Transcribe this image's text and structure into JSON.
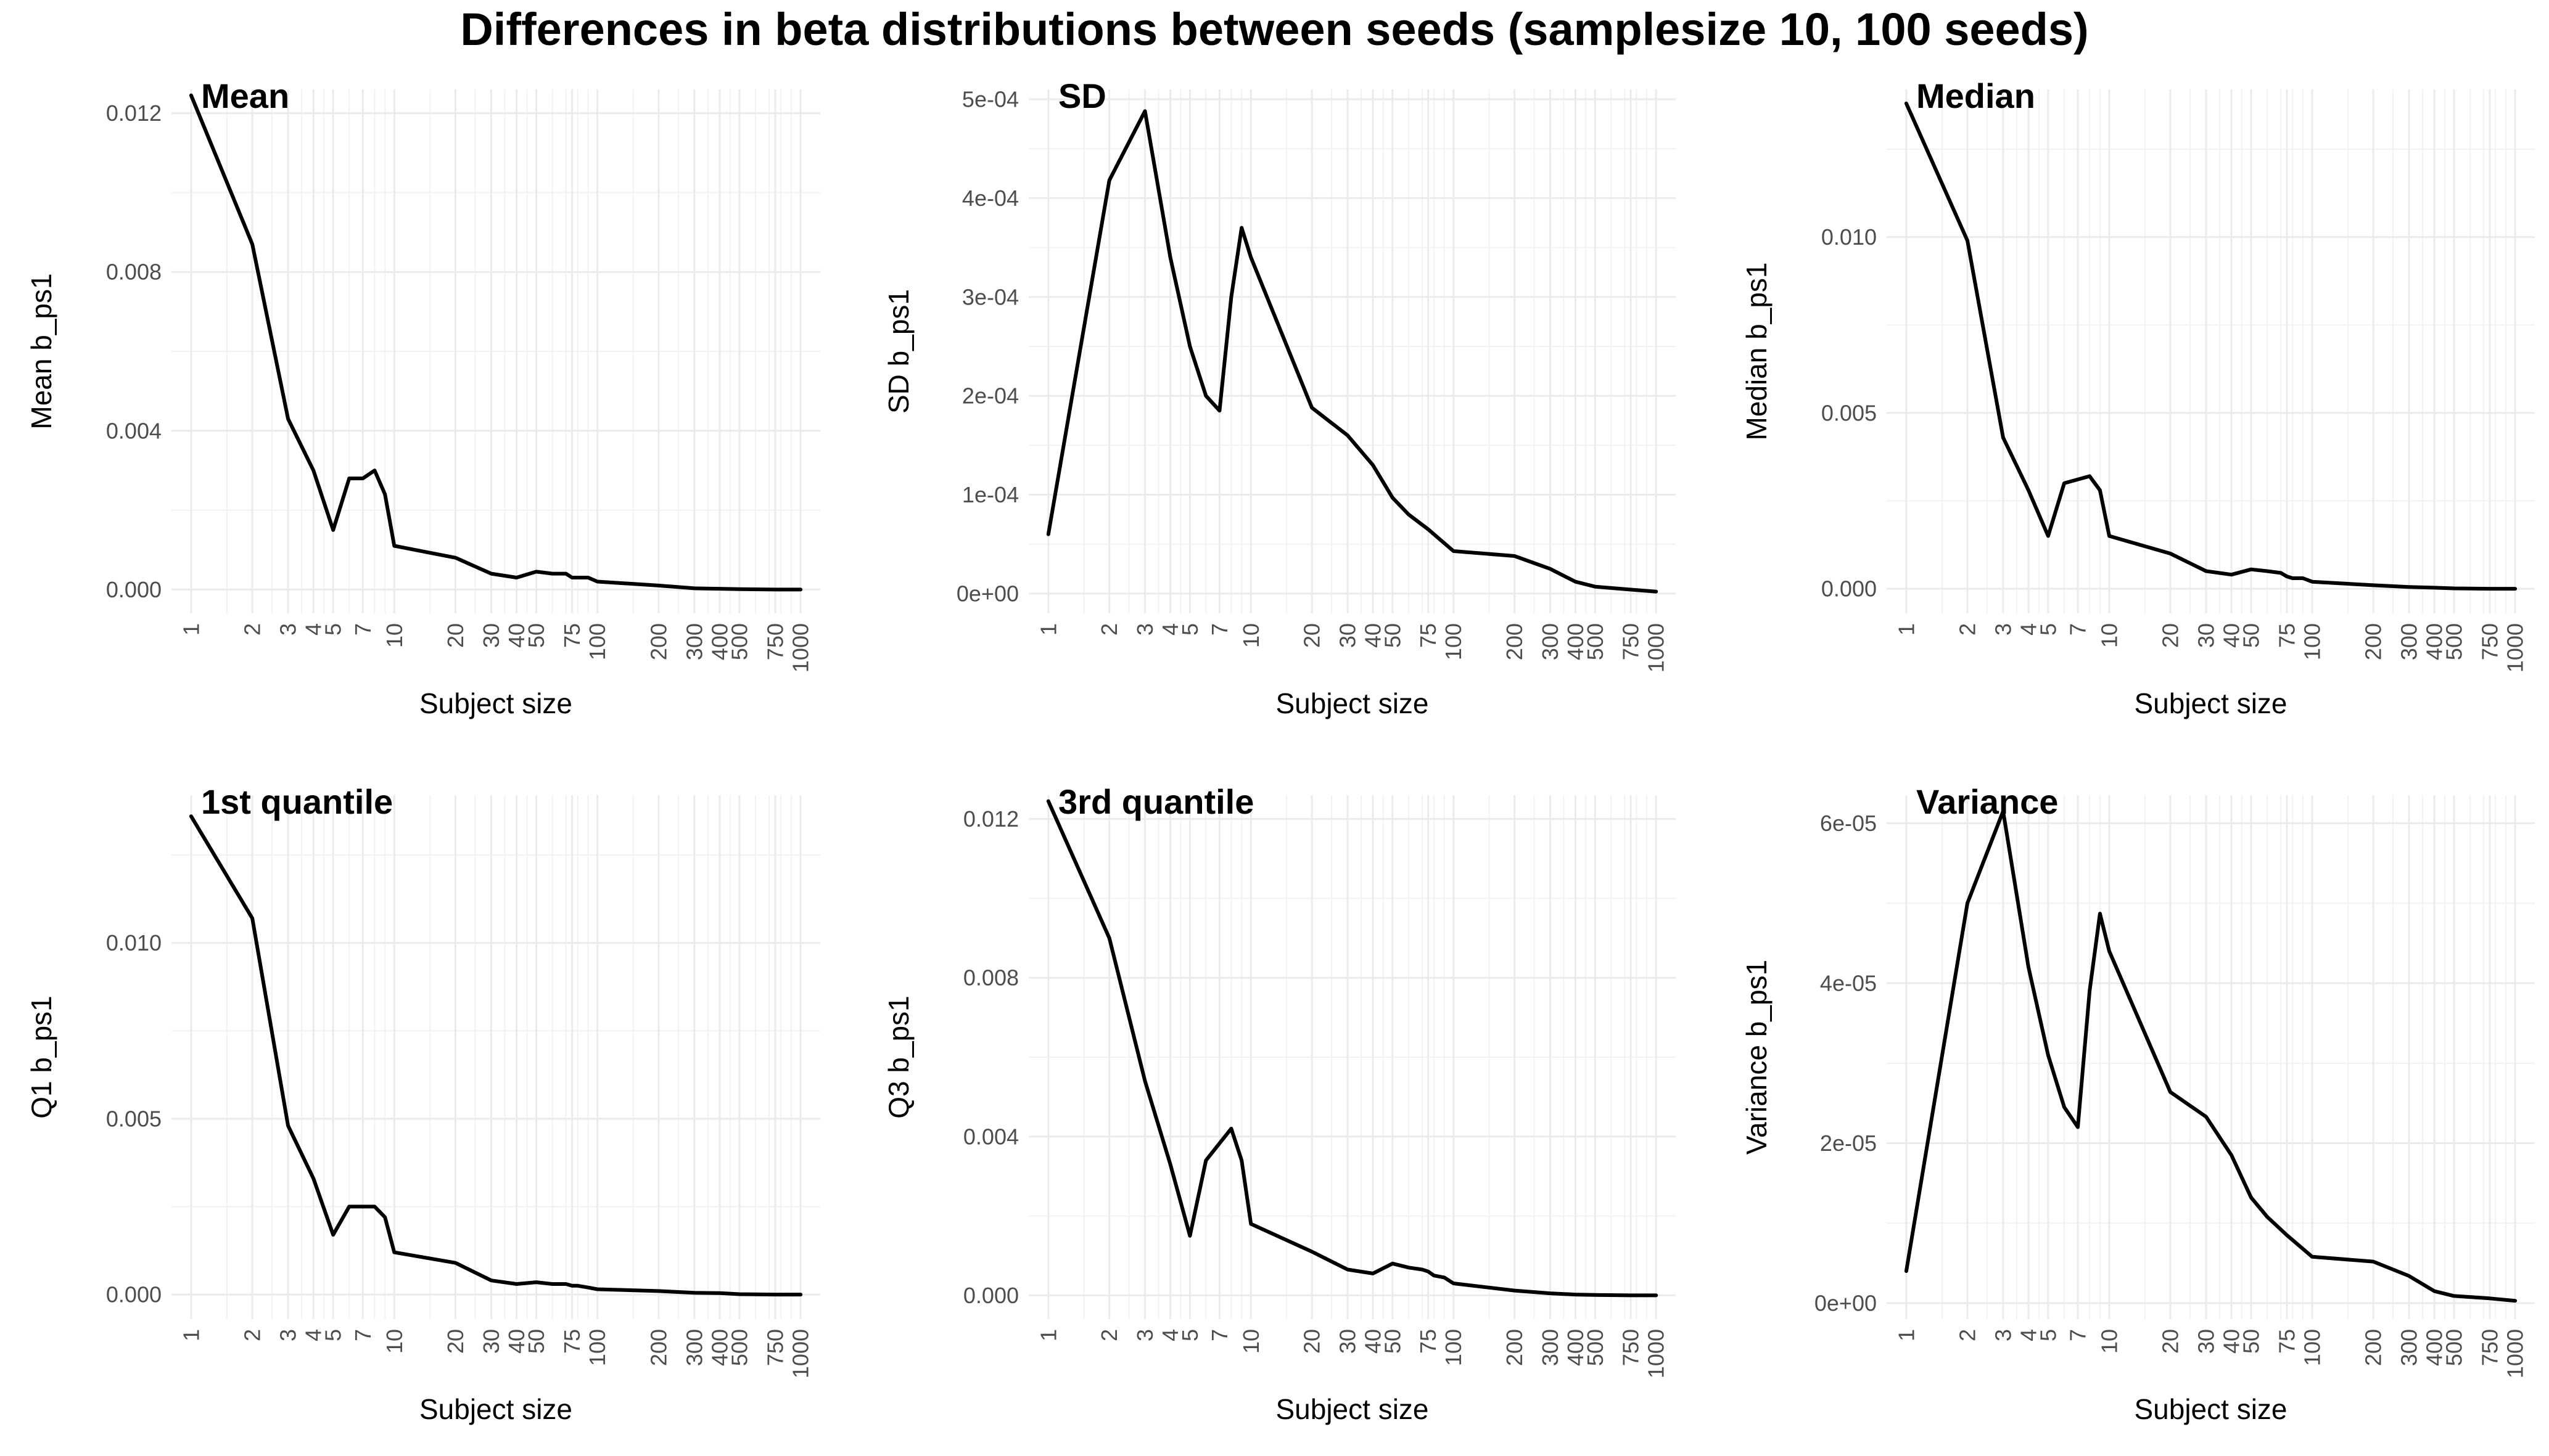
{
  "title": "Differences in beta distributions between seeds (samplesize 10, 100 seeds)",
  "style": {
    "line_color": "#000000",
    "background": "#ffffff",
    "grid_color": "#ebebeb",
    "tick_color": "#4d4d4d"
  },
  "chart_data": [
    {
      "type": "line",
      "title": "Mean",
      "xlabel": "Subject size",
      "ylabel": "Mean b_ps1",
      "x_scale": "log10",
      "grid": true,
      "x_ticks": [
        1,
        2,
        3,
        4,
        5,
        7,
        10,
        20,
        30,
        40,
        50,
        75,
        100,
        200,
        300,
        400,
        500,
        750,
        1000
      ],
      "y_ticks": [
        0,
        0.004,
        0.008,
        0.012
      ],
      "y_tick_labels": [
        "0.000",
        "0.004",
        "0.008",
        "0.012"
      ],
      "ylim": [
        -0.0006,
        0.0126
      ],
      "x": [
        1,
        2,
        3,
        4,
        5,
        6,
        7,
        8,
        9,
        10,
        20,
        30,
        40,
        50,
        60,
        70,
        75,
        80,
        90,
        100,
        200,
        300,
        400,
        500,
        750,
        1000
      ],
      "y": [
        0.01245,
        0.0087,
        0.0043,
        0.003,
        0.0015,
        0.0028,
        0.0028,
        0.003,
        0.0024,
        0.0011,
        0.0008,
        0.0004,
        0.0003,
        0.00045,
        0.0004,
        0.0004,
        0.0003,
        0.0003,
        0.0003,
        0.0002,
        0.0001,
        3e-05,
        2e-05,
        1e-05,
        0.0,
        0.0
      ]
    },
    {
      "type": "line",
      "title": "SD",
      "xlabel": "Subject size",
      "ylabel": "SD b_ps1",
      "x_scale": "log10",
      "grid": true,
      "x_ticks": [
        1,
        2,
        3,
        4,
        5,
        7,
        10,
        20,
        30,
        40,
        50,
        75,
        100,
        200,
        300,
        400,
        500,
        750,
        1000
      ],
      "y_ticks": [
        0,
        0.0001,
        0.0002,
        0.0003,
        0.0004,
        0.0005
      ],
      "y_tick_labels": [
        "0e+00",
        "1e-04",
        "2e-04",
        "3e-04",
        "4e-04",
        "5e-04"
      ],
      "ylim": [
        -2e-05,
        0.00051
      ],
      "x": [
        1,
        2,
        3,
        4,
        5,
        6,
        7,
        8,
        9,
        10,
        20,
        30,
        40,
        50,
        60,
        75,
        100,
        200,
        300,
        400,
        500,
        750,
        1000
      ],
      "y": [
        6e-05,
        0.000418,
        0.000488,
        0.00034,
        0.00025,
        0.0002,
        0.000185,
        0.0003,
        0.00037,
        0.00034,
        0.000188,
        0.00016,
        0.00013,
        9.7e-05,
        8e-05,
        6.5e-05,
        4.3e-05,
        3.8e-05,
        2.5e-05,
        1.2e-05,
        7e-06,
        4e-06,
        2e-06
      ]
    },
    {
      "type": "line",
      "title": "Median",
      "xlabel": "Subject size",
      "ylabel": "Median b_ps1",
      "x_scale": "log10",
      "grid": true,
      "x_ticks": [
        1,
        2,
        3,
        4,
        5,
        7,
        10,
        20,
        30,
        40,
        50,
        75,
        100,
        200,
        300,
        400,
        500,
        750,
        1000
      ],
      "y_ticks": [
        0,
        0.005,
        0.01
      ],
      "y_tick_labels": [
        "0.000",
        "0.005",
        "0.010"
      ],
      "ylim": [
        -0.0007,
        0.0142
      ],
      "x": [
        1,
        2,
        3,
        4,
        5,
        6,
        8,
        9,
        10,
        20,
        30,
        40,
        50,
        60,
        70,
        75,
        80,
        90,
        100,
        200,
        300,
        400,
        500,
        750,
        1000
      ],
      "y": [
        0.0138,
        0.0099,
        0.0043,
        0.0028,
        0.0015,
        0.003,
        0.0032,
        0.0028,
        0.0015,
        0.001,
        0.0005,
        0.0004,
        0.00055,
        0.0005,
        0.00045,
        0.00035,
        0.0003,
        0.0003,
        0.0002,
        0.0001,
        5e-05,
        3e-05,
        1e-05,
        0.0,
        0.0
      ]
    },
    {
      "type": "line",
      "title": "1st quantile",
      "xlabel": "Subject size",
      "ylabel": "Q1 b_ps1",
      "x_scale": "log10",
      "grid": true,
      "x_ticks": [
        1,
        2,
        3,
        4,
        5,
        7,
        10,
        20,
        30,
        40,
        50,
        75,
        100,
        200,
        300,
        400,
        500,
        750,
        1000
      ],
      "y_ticks": [
        0,
        0.005,
        0.01
      ],
      "y_tick_labels": [
        "0.000",
        "0.005",
        "0.010"
      ],
      "ylim": [
        -0.0007,
        0.0142
      ],
      "x": [
        1,
        2,
        3,
        4,
        5,
        6,
        7,
        8,
        9,
        10,
        20,
        30,
        40,
        50,
        60,
        70,
        75,
        80,
        90,
        100,
        200,
        300,
        400,
        500,
        750,
        1000
      ],
      "y": [
        0.0136,
        0.0107,
        0.0048,
        0.0033,
        0.0017,
        0.0025,
        0.0025,
        0.0025,
        0.0022,
        0.0012,
        0.0009,
        0.0004,
        0.0003,
        0.00035,
        0.0003,
        0.0003,
        0.00025,
        0.00025,
        0.0002,
        0.00015,
        0.0001,
        5e-05,
        4e-05,
        1e-05,
        0.0,
        0.0
      ]
    },
    {
      "type": "line",
      "title": "3rd quantile",
      "xlabel": "Subject size",
      "ylabel": "Q3 b_ps1",
      "x_scale": "log10",
      "grid": true,
      "x_ticks": [
        1,
        2,
        3,
        4,
        5,
        7,
        10,
        20,
        30,
        40,
        50,
        75,
        100,
        200,
        300,
        400,
        500,
        750,
        1000
      ],
      "y_ticks": [
        0,
        0.004,
        0.008,
        0.012
      ],
      "y_tick_labels": [
        "0.000",
        "0.004",
        "0.008",
        "0.012"
      ],
      "ylim": [
        -0.0006,
        0.0126
      ],
      "x": [
        1,
        2,
        3,
        4,
        5,
        6,
        8,
        9,
        10,
        20,
        30,
        40,
        50,
        60,
        70,
        75,
        80,
        90,
        100,
        200,
        300,
        400,
        500,
        750,
        1000
      ],
      "y": [
        0.01245,
        0.009,
        0.0054,
        0.0033,
        0.0015,
        0.0034,
        0.0042,
        0.0034,
        0.0018,
        0.0011,
        0.00065,
        0.00055,
        0.0008,
        0.0007,
        0.00065,
        0.0006,
        0.0005,
        0.00045,
        0.0003,
        0.00012,
        5e-05,
        2e-05,
        1e-05,
        0.0,
        0.0
      ]
    },
    {
      "type": "line",
      "title": "Variance",
      "xlabel": "Subject size",
      "ylabel": "Variance b_ps1",
      "x_scale": "log10",
      "grid": true,
      "x_ticks": [
        1,
        2,
        3,
        4,
        5,
        7,
        10,
        20,
        30,
        40,
        50,
        75,
        100,
        200,
        300,
        400,
        500,
        750,
        1000
      ],
      "y_ticks": [
        0,
        2e-05,
        4e-05,
        6e-05
      ],
      "y_tick_labels": [
        "0e+00",
        "2e-05",
        "4e-05",
        "6e-05"
      ],
      "ylim": [
        -2e-06,
        6.35e-05
      ],
      "x": [
        1,
        2,
        3,
        4,
        5,
        6,
        7,
        8,
        9,
        10,
        20,
        30,
        40,
        50,
        60,
        75,
        100,
        200,
        300,
        400,
        500,
        750,
        1000
      ],
      "y": [
        4e-06,
        5e-05,
        6.15e-05,
        4.2e-05,
        3.1e-05,
        2.45e-05,
        2.2e-05,
        3.9e-05,
        4.87e-05,
        4.4e-05,
        2.64e-05,
        2.33e-05,
        1.85e-05,
        1.32e-05,
        1.08e-05,
        8.5e-06,
        5.8e-06,
        5.2e-06,
        3.4e-06,
        1.5e-06,
        9e-07,
        6e-07,
        3e-07
      ]
    }
  ]
}
